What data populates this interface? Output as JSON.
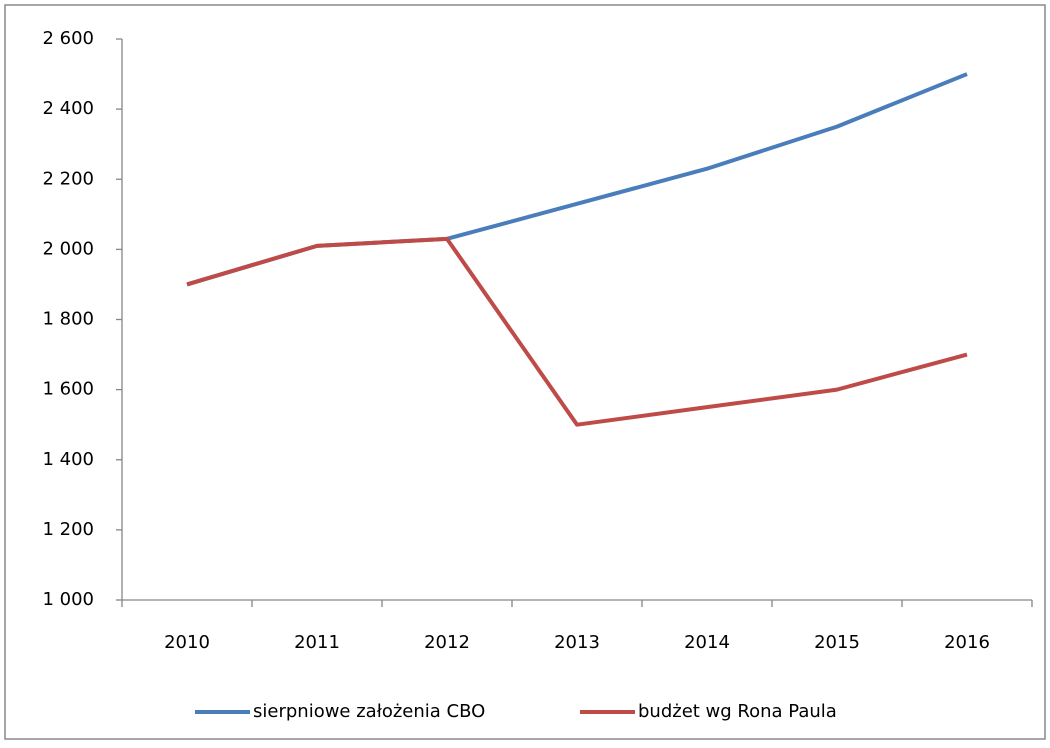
{
  "chart_data": {
    "type": "line",
    "categories": [
      "2010",
      "2011",
      "2012",
      "2013",
      "2014",
      "2015",
      "2016"
    ],
    "series": [
      {
        "name": "sierpniowe założenia CBO",
        "color": "#4a7ebb",
        "values": [
          1900,
          2010,
          2030,
          2130,
          2230,
          2350,
          2500
        ]
      },
      {
        "name": "budżet wg Rona Paula",
        "color": "#be4b48",
        "values": [
          1900,
          2010,
          2030,
          1500,
          1550,
          1600,
          1700
        ]
      }
    ],
    "ylim": [
      1000,
      2600
    ],
    "yticks": [
      {
        "value": 1000,
        "label": "1 000"
      },
      {
        "value": 1200,
        "label": "1 200"
      },
      {
        "value": 1400,
        "label": "1 400"
      },
      {
        "value": 1600,
        "label": "1 600"
      },
      {
        "value": 1800,
        "label": "1 800"
      },
      {
        "value": 2000,
        "label": "2 000"
      },
      {
        "value": 2200,
        "label": "2 200"
      },
      {
        "value": 2400,
        "label": "2 400"
      },
      {
        "value": 2600,
        "label": "2 600"
      }
    ],
    "grid": false,
    "legend": "bottom"
  }
}
